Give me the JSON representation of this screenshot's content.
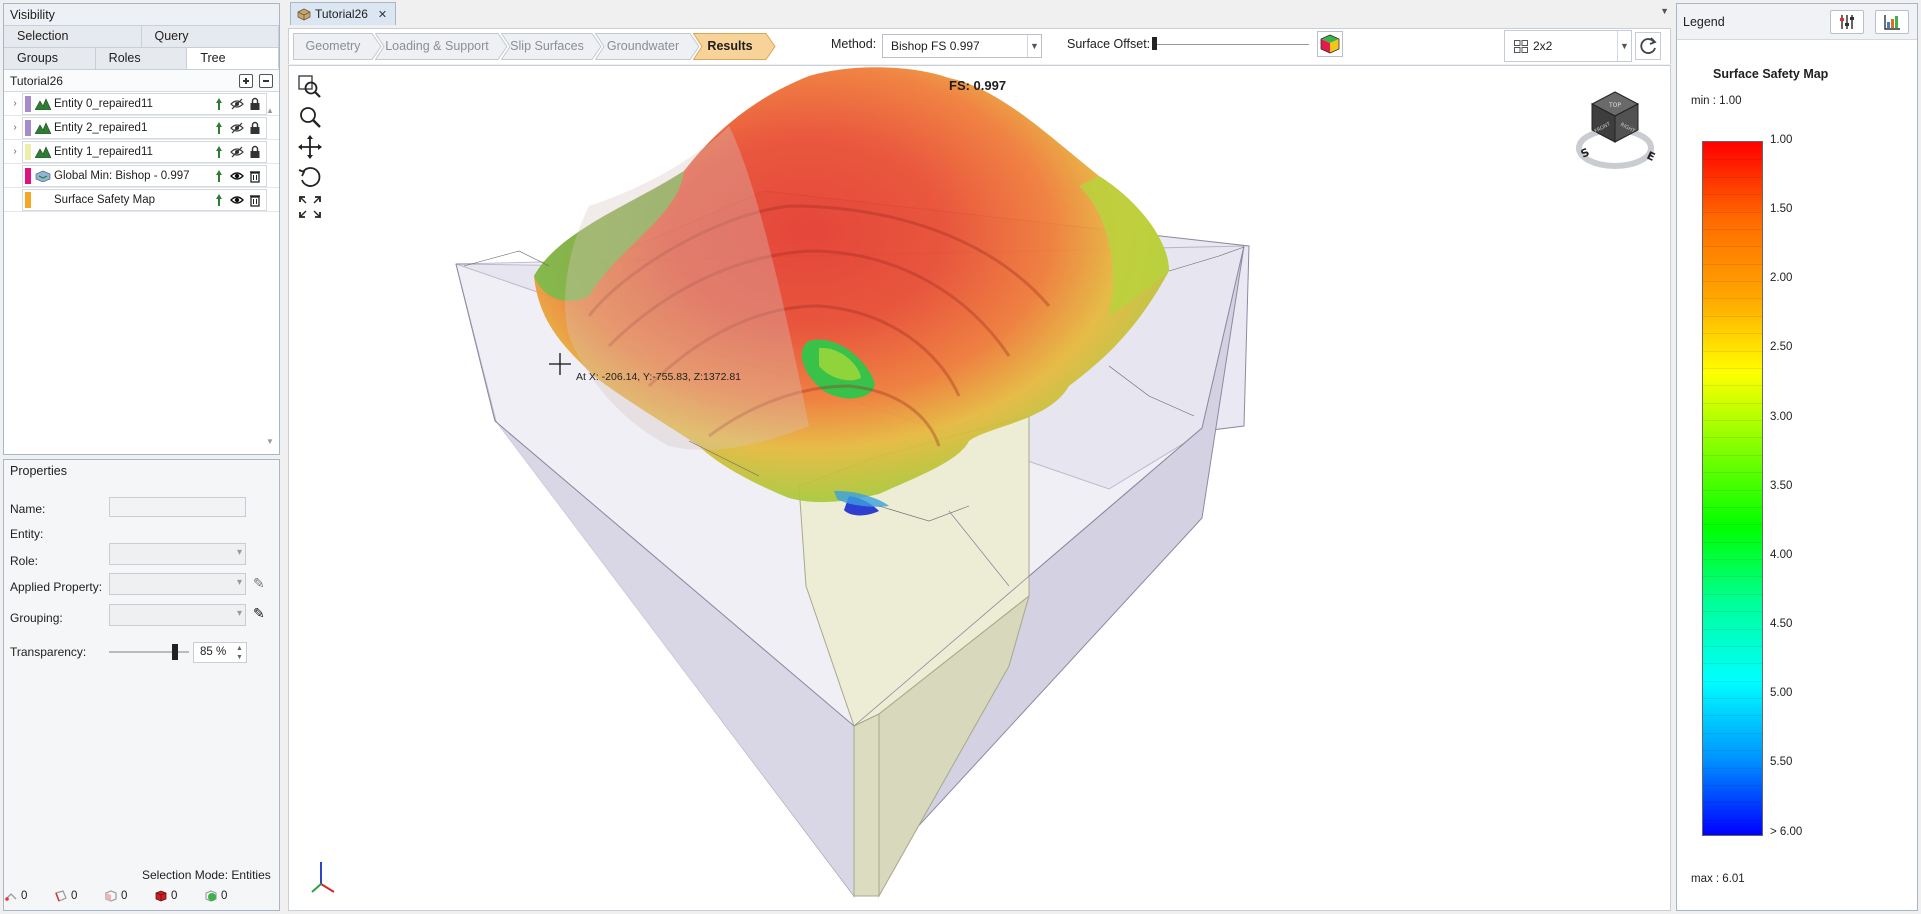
{
  "left_panel": {
    "visibility_title": "Visibility",
    "tabs_row1": [
      "Selection",
      "Query"
    ],
    "tabs_row2": [
      "Groups",
      "Roles",
      "Tree"
    ],
    "active_tab": "Tree",
    "tree_root": "Tutorial26",
    "tree_items": [
      {
        "label": "Entity 0_repaired11",
        "swatch": "#a78bca",
        "type": "entity"
      },
      {
        "label": "Entity 2_repaired1",
        "swatch": "#a78bca",
        "type": "entity"
      },
      {
        "label": "Entity 1_repaired11",
        "swatch": "#eeeeaa",
        "type": "entity"
      },
      {
        "label": "Global Min: Bishop  -  0.997",
        "swatch": "#e0117f",
        "type": "slip"
      },
      {
        "label": "Surface Safety Map",
        "swatch": "#f5a623",
        "type": "map"
      }
    ],
    "properties_title": "Properties",
    "properties": {
      "name_label": "Name:",
      "entity_label": "Entity:",
      "role_label": "Role:",
      "applied_property_label": "Applied Property:",
      "grouping_label": "Grouping:",
      "transparency_label": "Transparency:",
      "transparency_value": "85 %",
      "transparency_fraction": 0.85
    },
    "selection_mode": "Selection Mode: Entities",
    "counters": [
      "0",
      "0",
      "0",
      "0",
      "0"
    ]
  },
  "center": {
    "doc_tab": "Tutorial26",
    "workflow_steps": [
      "Geometry",
      "Loading & Support",
      "Slip Surfaces",
      "Groundwater",
      "Results"
    ],
    "active_step": "Results",
    "method_label": "Method:",
    "method_value": "Bishop FS    0.997",
    "surface_offset_label": "Surface Offset:",
    "layout_value": "2x2",
    "fs_label": "FS: 0.997",
    "coord_readout": "At X: -206.14, Y:-755.83, Z:1372.81",
    "navcube_faces": [
      "TOP",
      "FRONT",
      "RIGHT"
    ],
    "navcube_compass": [
      "S",
      "E"
    ]
  },
  "legend": {
    "header": "Legend",
    "title": "Surface Safety Map",
    "min_label": "min :   1.00",
    "max_label": "max :  6.01",
    "ticks": [
      "1.00",
      "1.50",
      "2.00",
      "2.50",
      "3.00",
      "3.50",
      "4.00",
      "4.50",
      "5.00",
      "5.50",
      "> 6.00"
    ],
    "colors": [
      "#ff0000",
      "#ff6a00",
      "#ffa500",
      "#ffff00",
      "#7fff00",
      "#00ff00",
      "#00ff9a",
      "#00ffff",
      "#0095ff",
      "#0000ff"
    ]
  }
}
